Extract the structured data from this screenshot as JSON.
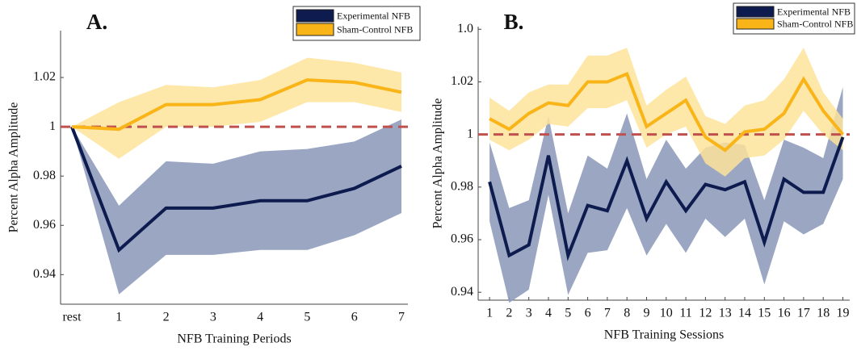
{
  "chart_data": [
    {
      "type": "line",
      "title": "A.",
      "xlabel": "NFB Training Periods",
      "ylabel": "Percent Alpha Amplitude",
      "categories": [
        "rest",
        "1",
        "2",
        "3",
        "4",
        "5",
        "6",
        "7"
      ],
      "ylim": [
        0.928,
        1.039
      ],
      "yticks": [
        0.94,
        0.96,
        0.98,
        1,
        1.02
      ],
      "legend": "upper right",
      "reference_line": {
        "value": 1,
        "color": "#c0504d"
      },
      "series": [
        {
          "name": "Experimental NFB",
          "color": "#0d1b4f",
          "band_color": "#8f9cbb",
          "values": [
            1.0,
            0.95,
            0.967,
            0.967,
            0.97,
            0.97,
            0.975,
            0.984
          ],
          "lower": [
            1.0,
            0.932,
            0.948,
            0.948,
            0.95,
            0.95,
            0.956,
            0.965
          ],
          "upper": [
            1.0,
            0.968,
            0.986,
            0.985,
            0.99,
            0.991,
            0.994,
            1.003
          ]
        },
        {
          "name": "Sham-Control NFB",
          "color": "#f9b418",
          "band_color": "#fde39a",
          "values": [
            1.0,
            0.999,
            1.009,
            1.009,
            1.011,
            1.019,
            1.018,
            1.014
          ],
          "lower": [
            1.0,
            0.987,
            1.0,
            1.0,
            1.002,
            1.01,
            1.01,
            1.006
          ],
          "upper": [
            1.0,
            1.01,
            1.017,
            1.016,
            1.019,
            1.028,
            1.026,
            1.022
          ]
        }
      ]
    },
    {
      "type": "line",
      "title": "B.",
      "xlabel": "NFB Training Sessions",
      "ylabel": "Percent Alpha Amplitude",
      "x": [
        1,
        2,
        3,
        4,
        5,
        6,
        7,
        8,
        9,
        10,
        11,
        12,
        13,
        14,
        15,
        16,
        17,
        18,
        19
      ],
      "xlim": [
        0.42,
        19.35
      ],
      "xticks": [
        1,
        2,
        3,
        4,
        5,
        6,
        7,
        8,
        9,
        10,
        11,
        12,
        13,
        14,
        15,
        16,
        17,
        18,
        19
      ],
      "ylim": [
        0.937,
        1.041
      ],
      "yticks": [
        0.94,
        0.96,
        0.98,
        1,
        1.02,
        {
          "value": 1.04,
          "label": "1.0"
        }
      ],
      "legend": "upper right",
      "reference_line": {
        "value": 1,
        "color": "#c0504d"
      },
      "series": [
        {
          "name": "Experimental NFB",
          "color": "#0d1b4f",
          "band_color": "#8f9cbb",
          "values": [
            0.982,
            0.954,
            0.958,
            0.992,
            0.954,
            0.973,
            0.971,
            0.99,
            0.968,
            0.982,
            0.971,
            0.981,
            0.979,
            0.982,
            0.959,
            0.983,
            0.978,
            0.978,
            0.999
          ],
          "lower": [
            0.967,
            0.936,
            0.941,
            0.977,
            0.939,
            0.955,
            0.956,
            0.972,
            0.954,
            0.966,
            0.955,
            0.968,
            0.961,
            0.968,
            0.943,
            0.967,
            0.962,
            0.966,
            0.983
          ],
          "upper": [
            0.997,
            0.972,
            0.975,
            1.007,
            0.97,
            0.992,
            0.987,
            1.008,
            0.983,
            0.998,
            0.987,
            0.995,
            0.997,
            0.996,
            0.975,
            0.998,
            0.995,
            0.991,
            1.018
          ]
        },
        {
          "name": "Sham-Control NFB",
          "color": "#f9b418",
          "band_color": "#fde39a",
          "values": [
            1.006,
            1.002,
            1.008,
            1.012,
            1.011,
            1.02,
            1.02,
            1.023,
            1.003,
            1.008,
            1.013,
            0.999,
            0.994,
            1.001,
            1.002,
            1.008,
            1.021,
            1.009,
            1.0
          ],
          "lower": [
            0.998,
            0.994,
            0.998,
            1.004,
            1.003,
            1.01,
            1.01,
            1.013,
            0.995,
            1.0,
            1.003,
            0.989,
            0.984,
            0.991,
            0.992,
            0.998,
            1.009,
            1.0,
            0.994
          ],
          "upper": [
            1.014,
            1.009,
            1.016,
            1.019,
            1.019,
            1.03,
            1.03,
            1.033,
            1.011,
            1.017,
            1.022,
            1.007,
            1.004,
            1.011,
            1.013,
            1.021,
            1.033,
            1.016,
            1.006
          ]
        }
      ]
    }
  ]
}
